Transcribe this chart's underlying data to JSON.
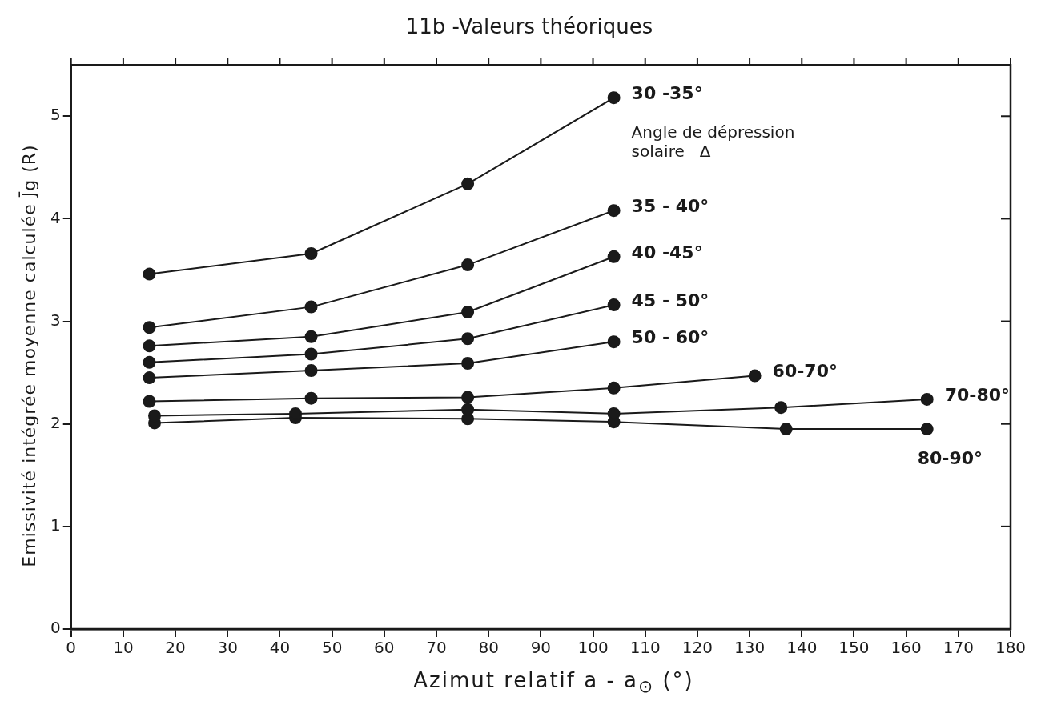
{
  "chart_data": {
    "type": "line",
    "title": "11b -Valeurs théoriques",
    "xlabel": "Azimut relatif a - a$_{⊙}$ (°)",
    "ylabel": "Emissivité intégrée moyenne calculée J̄g (R)",
    "xlim": [
      0,
      180
    ],
    "xticks": [
      0,
      10,
      20,
      30,
      40,
      50,
      60,
      70,
      80,
      90,
      100,
      110,
      120,
      130,
      140,
      150,
      160,
      170,
      180
    ],
    "ylim": [
      0,
      5.5
    ],
    "yticks": [
      0,
      1,
      2,
      3,
      4,
      5
    ],
    "grid": false,
    "marker": "circle",
    "line_style": "solid",
    "annotations": [
      "Angle de dépression solaire Δ"
    ],
    "series": [
      {
        "name": "30 -35°",
        "color": "#1a1a1a",
        "x": [
          15,
          46,
          76,
          104
        ],
        "values": [
          3.46,
          3.66,
          4.34,
          5.18
        ]
      },
      {
        "name": "35 - 40°",
        "color": "#1a1a1a",
        "x": [
          15,
          46,
          76,
          104
        ],
        "values": [
          2.94,
          3.14,
          3.55,
          4.08
        ]
      },
      {
        "name": "40 -45°",
        "color": "#1a1a1a",
        "x": [
          15,
          46,
          76,
          104
        ],
        "values": [
          2.76,
          2.85,
          3.09,
          3.63
        ]
      },
      {
        "name": "45 - 50°",
        "color": "#1a1a1a",
        "x": [
          15,
          46,
          76,
          104
        ],
        "values": [
          2.6,
          2.68,
          2.83,
          3.16
        ]
      },
      {
        "name": "50 - 60°",
        "color": "#1a1a1a",
        "x": [
          15,
          46,
          76,
          104
        ],
        "values": [
          2.45,
          2.52,
          2.59,
          2.8
        ]
      },
      {
        "name": "60-70°",
        "color": "#1a1a1a",
        "x": [
          15,
          46,
          76,
          104,
          131
        ],
        "values": [
          2.22,
          2.25,
          2.26,
          2.35,
          2.47
        ]
      },
      {
        "name": "70-80°",
        "color": "#1a1a1a",
        "x": [
          16,
          43,
          76,
          104,
          136,
          164
        ],
        "values": [
          2.08,
          2.1,
          2.14,
          2.1,
          2.16,
          2.24
        ]
      },
      {
        "name": "80-90°",
        "color": "#1a1a1a",
        "x": [
          16,
          43,
          76,
          104,
          137,
          164
        ],
        "values": [
          2.01,
          2.06,
          2.05,
          2.02,
          1.95,
          1.95
        ]
      }
    ]
  }
}
